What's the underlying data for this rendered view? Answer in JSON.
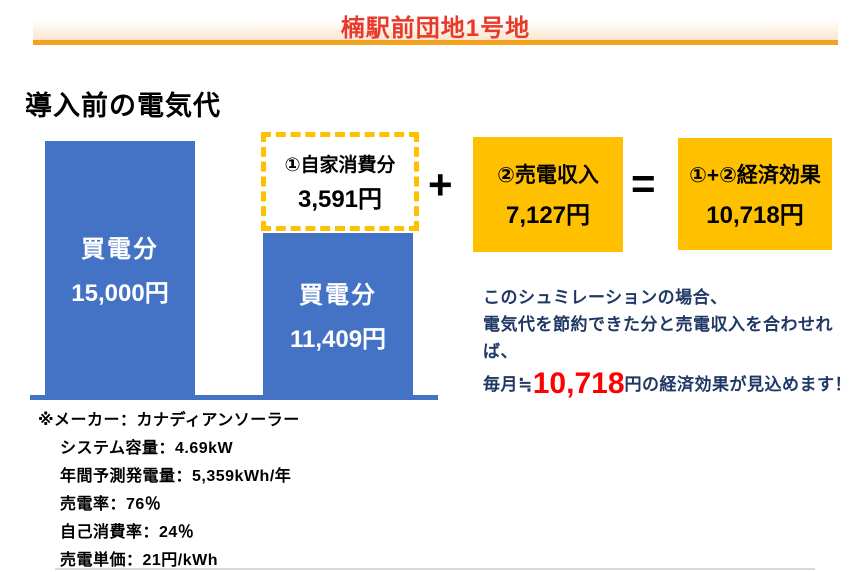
{
  "header": {
    "title": "楠駅前団地1号地"
  },
  "page": {
    "heading": "導入前の電気代"
  },
  "figure": {
    "type": "bar-comparison",
    "bar_before": {
      "label": "買電分",
      "value": "15,000円",
      "amount_yen": 15000
    },
    "self_box": {
      "label": "①自家消費分",
      "value": "3,591円",
      "amount_yen": 3591
    },
    "bar_after": {
      "label": "買電分",
      "value": "11,409円",
      "amount_yen": 11409
    },
    "plus": "+",
    "sell_box": {
      "label": "②売電収入",
      "value": "7,127円",
      "amount_yen": 7127
    },
    "equals": "=",
    "effect_box": {
      "label": "①+②経済効果",
      "value": "10,718円",
      "amount_yen": 10718
    }
  },
  "summary": {
    "line1": "このシュミレーションの場合、",
    "line2": "電気代を節約できた分と売電収入を合わせれば、",
    "line3_prefix": "毎月≒",
    "line3_highlight": "10,718",
    "line3_suffix": "円の経済効果が見込めます！"
  },
  "notes": {
    "maker": "※メーカー：カナディアンソーラー",
    "items": [
      "システム容量：4.69kW",
      "年間予測発電量：5,359kWh/年",
      "売電率：76％",
      "自己消費率：24％",
      "売電単価：21円/kWh"
    ]
  },
  "colors": {
    "bar_blue": "#4472C4",
    "accent_gold": "#FFC000",
    "header_underline_orange": "#F2A21E",
    "title_red": "#E8392B",
    "highlight_red": "#FF0000",
    "summary_navy": "#1F3864"
  }
}
